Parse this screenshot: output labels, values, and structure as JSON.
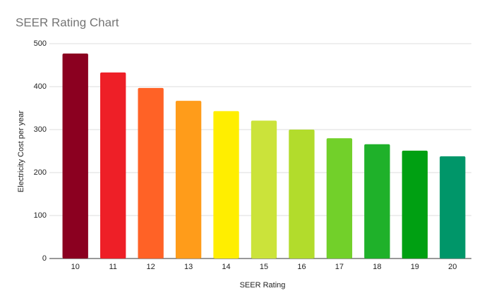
{
  "chart_data": {
    "type": "bar",
    "title": "SEER Rating Chart",
    "x_label": "SEER Rating",
    "y_label": "Electricity Cost per year",
    "categories": [
      "10",
      "11",
      "12",
      "13",
      "14",
      "15",
      "16",
      "17",
      "18",
      "19",
      "20"
    ],
    "values": [
      477,
      433,
      397,
      367,
      343,
      321,
      300,
      280,
      266,
      251,
      238
    ],
    "colors": [
      "#8b0020",
      "#ee1f27",
      "#ff6226",
      "#ff9c1a",
      "#ffee00",
      "#cbe33a",
      "#b2dc2c",
      "#72d02a",
      "#1fb12a",
      "#00a012",
      "#009669"
    ],
    "ylim": [
      0,
      500
    ],
    "yticks": [
      0,
      100,
      200,
      300,
      400,
      500
    ],
    "grid": true
  }
}
